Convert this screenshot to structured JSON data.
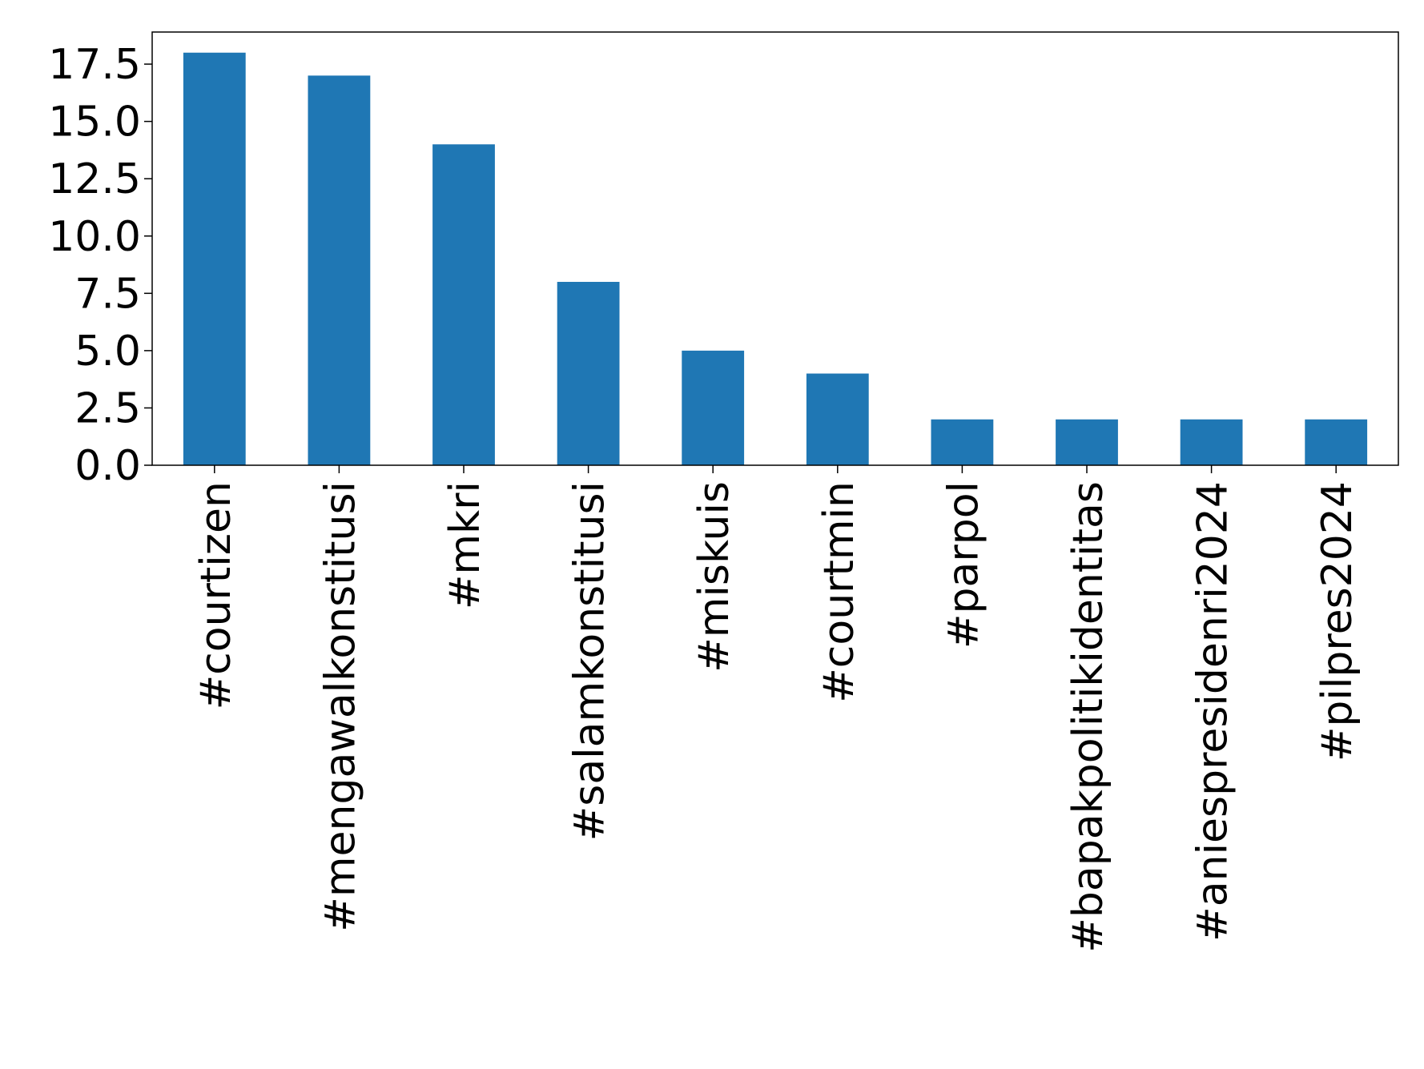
{
  "chart_data": {
    "type": "bar",
    "categories": [
      "#courtizen",
      "#mengawalkonstitusi",
      "#mkri",
      "#salamkonstitusi",
      "#miskuis",
      "#courtmin",
      "#parpol",
      "#bapakpolitikidentitas",
      "#aniespresidenri2024",
      "#pilpres2024"
    ],
    "values": [
      18,
      17,
      14,
      8,
      5,
      4,
      2,
      2,
      2,
      2
    ],
    "yticks": [
      "0.0",
      "2.5",
      "5.0",
      "7.5",
      "10.0",
      "12.5",
      "15.0",
      "17.5"
    ],
    "ylim": [
      0,
      18.9
    ],
    "bar_color": "#1f77b4",
    "grid": false,
    "legend": "none",
    "x_tick_rotation": "vertical"
  }
}
